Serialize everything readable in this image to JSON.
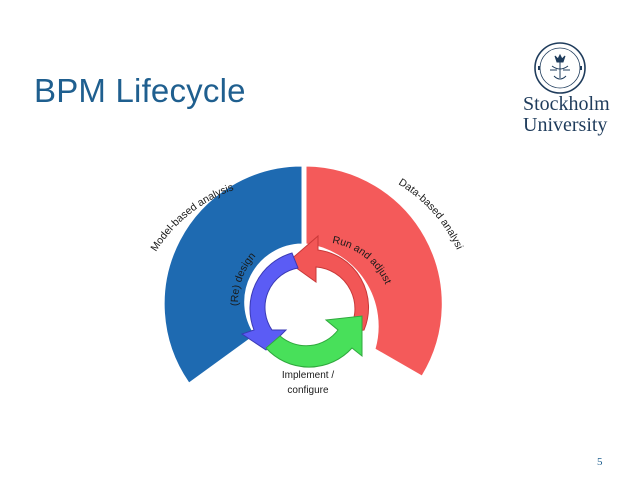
{
  "slide": {
    "title": "BPM Lifecycle",
    "page_number": "5"
  },
  "logo": {
    "line1": "Stockholm",
    "line2": "University",
    "seal_text": "UNIVERSITET STOCKHOLMS"
  },
  "diagram": {
    "outer_left_label": "Model-based analysis",
    "outer_right_label": "Data-based analysis",
    "cycle_left_label": "(Re) design",
    "cycle_right_label": "Run and adjust",
    "bottom_label_line1": "Implement /",
    "bottom_label_line2": "configure",
    "colors": {
      "model_arc": "#1e6ab1",
      "data_arc": "#f45a5a",
      "redesign_arrow": "#5b5cf5",
      "run_arrow": "#f25656",
      "implement_arrow": "#48e05a"
    }
  }
}
